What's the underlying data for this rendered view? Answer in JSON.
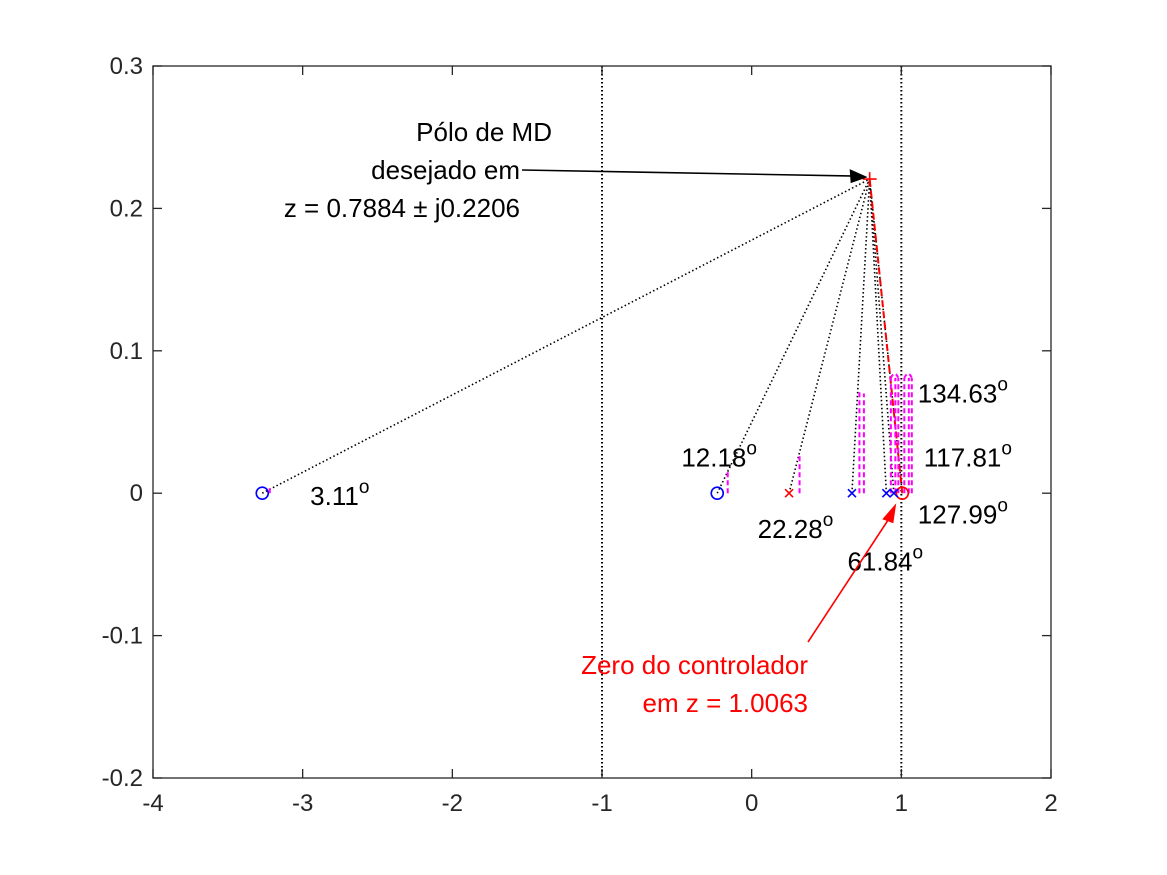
{
  "chart_data": {
    "type": "scatter",
    "xlim": [
      -4,
      2
    ],
    "ylim": [
      -0.2,
      0.3
    ],
    "xticks": [
      -4,
      -3,
      -2,
      -1,
      0,
      1,
      2
    ],
    "yticks": [
      -0.2,
      -0.1,
      0,
      0.1,
      0.2,
      0.3
    ],
    "xtick_labels": [
      "-4",
      "-3",
      "-2",
      "-1",
      "0",
      "1",
      "2"
    ],
    "ytick_labels": [
      "-0.2",
      "-0.1",
      "0",
      "0.1",
      "0.2",
      "0.3"
    ],
    "grid": false,
    "desired_pole": {
      "x": 0.7884,
      "y": 0.2206,
      "marker": "+",
      "color": "#ff0000"
    },
    "unit_circle_x": [
      -1,
      1
    ],
    "zeros": [
      {
        "x": -3.27,
        "y": 0,
        "marker": "o",
        "color": "#0000ff"
      },
      {
        "x": -0.23,
        "y": 0,
        "marker": "o",
        "color": "#0000ff"
      },
      {
        "x": 1.0063,
        "y": 0,
        "marker": "o",
        "color": "#ff0000"
      }
    ],
    "poles": [
      {
        "x": 0.25,
        "y": 0,
        "marker": "x",
        "color": "#ff0000"
      },
      {
        "x": 0.67,
        "y": 0,
        "marker": "x",
        "color": "#0000ff"
      },
      {
        "x": 0.9,
        "y": 0,
        "marker": "x",
        "color": "#0000ff"
      },
      {
        "x": 0.95,
        "y": 0,
        "marker": "x",
        "color": "#0000ff"
      }
    ],
    "angle_markers": [
      {
        "x": -3.22,
        "h": 0.005
      },
      {
        "x": -0.16,
        "h": 0.017
      },
      {
        "x": 0.32,
        "h": 0.027
      },
      {
        "x": 0.72,
        "h": 0.072
      },
      {
        "x": 0.75,
        "h": 0.07
      },
      {
        "x": 0.93,
        "h": 0.081
      },
      {
        "x": 0.96,
        "h": 0.081
      },
      {
        "x": 0.98,
        "h": 0.081
      },
      {
        "x": 1.02,
        "h": 0.081
      },
      {
        "x": 1.05,
        "h": 0.081
      },
      {
        "x": 1.07,
        "h": 0.081
      }
    ],
    "angle_labels": [
      {
        "text": "3.11",
        "x": -2.95,
        "y": -0.002
      },
      {
        "text": "12.18",
        "x": -0.47,
        "y": 0.025
      },
      {
        "text": "22.28",
        "x": 0.04,
        "y": -0.025
      },
      {
        "text": "61.84",
        "x": 0.64,
        "y": -0.048
      },
      {
        "text": "134.63",
        "x": 1.11,
        "y": 0.07
      },
      {
        "text": "117.81",
        "x": 1.15,
        "y": 0.025
      },
      {
        "text": "127.99",
        "x": 1.11,
        "y": -0.015
      }
    ],
    "pole_annotation": {
      "lines": [
        "Pólo de MD",
        "desejado em",
        "z = 0.7884 ± j0.2206"
      ],
      "color": "#000000"
    },
    "zero_annotation": {
      "lines": [
        "Zero do controlador",
        "em z = 1.0063"
      ],
      "color": "#ff0000"
    },
    "degree_symbol": "o",
    "colors": {
      "axis": "#262626",
      "blue": "#0000ff",
      "red": "#ff0000",
      "magenta": "#ff00ff",
      "black": "#000000"
    }
  }
}
